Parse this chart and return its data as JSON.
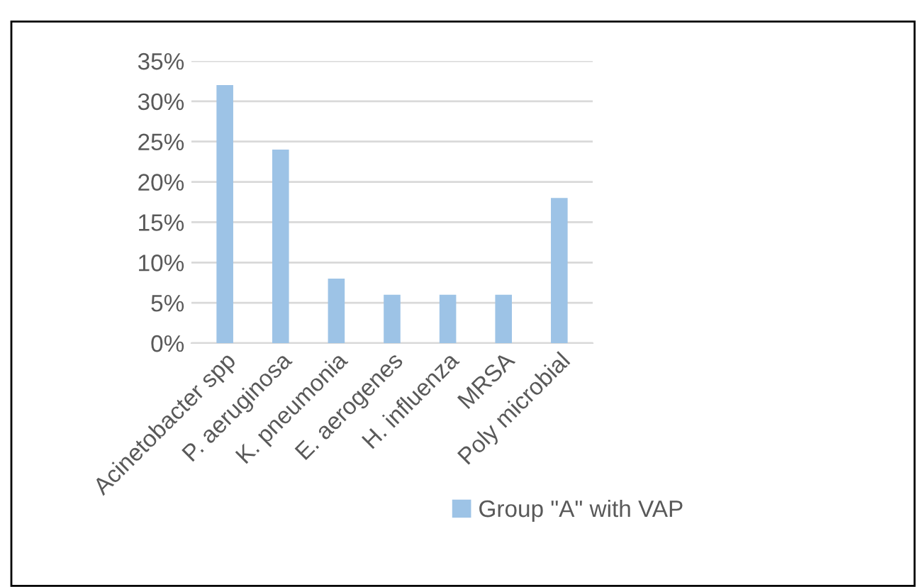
{
  "chart_data": {
    "type": "bar",
    "categories": [
      "Acinetobacter spp",
      "P. aeruginosa",
      "K. pneumonia",
      "E. aerogenes",
      "H. influenza",
      "MRSA",
      "Poly microbial"
    ],
    "series": [
      {
        "name": "Group \"A\" with VAP",
        "color": "#9dc3e6",
        "values": [
          32,
          24,
          8,
          6,
          6,
          6,
          18
        ]
      }
    ],
    "ylim": [
      0,
      35
    ],
    "yticks": [
      {
        "value": 0,
        "label": "0%"
      },
      {
        "value": 5,
        "label": "5%"
      },
      {
        "value": 10,
        "label": "10%"
      },
      {
        "value": 15,
        "label": "15%"
      },
      {
        "value": 20,
        "label": "20%"
      },
      {
        "value": 25,
        "label": "25%"
      },
      {
        "value": 30,
        "label": "30%"
      },
      {
        "value": 35,
        "label": "35%"
      }
    ],
    "grid": "y",
    "legend": "bottom"
  }
}
